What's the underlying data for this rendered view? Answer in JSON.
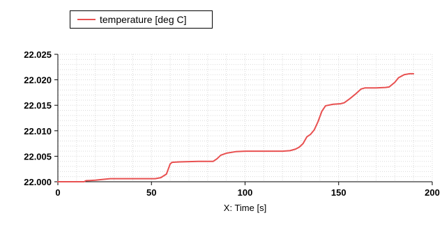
{
  "legend": {
    "label": "temperature [deg C]"
  },
  "colors": {
    "series": "#e85050",
    "grid": "#d9d9d9",
    "axis": "#000000"
  },
  "chart_data": {
    "type": "line",
    "title": "",
    "xlabel": "X: Time [s]",
    "ylabel": "",
    "xlim": [
      0,
      200
    ],
    "ylim": [
      22.0,
      22.025
    ],
    "xticks": [
      0,
      50,
      100,
      150,
      200
    ],
    "xtick_labels": [
      "0",
      "50",
      "100",
      "150",
      "200"
    ],
    "yticks": [
      22.0,
      22.005,
      22.01,
      22.015,
      22.02,
      22.025
    ],
    "ytick_labels": [
      "22.000",
      "22.005",
      "22.010",
      "22.015",
      "22.020",
      "22.025"
    ],
    "grid": true,
    "legend_position": "top-left",
    "series": [
      {
        "name": "temperature [deg C]",
        "x": [
          0,
          14,
          15,
          20,
          25,
          28,
          35,
          45,
          52,
          55,
          58,
          59,
          60,
          61,
          65,
          75,
          83,
          85,
          87,
          90,
          95,
          100,
          110,
          120,
          124,
          127,
          129,
          131,
          133,
          135,
          137,
          139,
          141,
          143,
          147,
          151,
          153,
          156,
          159,
          162,
          164,
          170,
          175,
          177,
          180,
          182,
          185,
          188,
          190
        ],
        "y": [
          22.0,
          22.0,
          22.0002,
          22.0003,
          22.0005,
          22.0006,
          22.0006,
          22.0006,
          22.0006,
          22.0008,
          22.0015,
          22.0025,
          22.0035,
          22.0038,
          22.0039,
          22.004,
          22.004,
          22.0045,
          22.0052,
          22.0056,
          22.0059,
          22.006,
          22.006,
          22.006,
          22.0061,
          22.0064,
          22.0068,
          22.0075,
          22.0088,
          22.0093,
          22.0102,
          22.0118,
          22.0138,
          22.0149,
          22.0152,
          22.0153,
          22.0155,
          22.0163,
          22.0172,
          22.0182,
          22.0184,
          22.0184,
          22.0185,
          22.0186,
          22.0195,
          22.0204,
          22.021,
          22.0212,
          22.0212
        ]
      }
    ]
  }
}
